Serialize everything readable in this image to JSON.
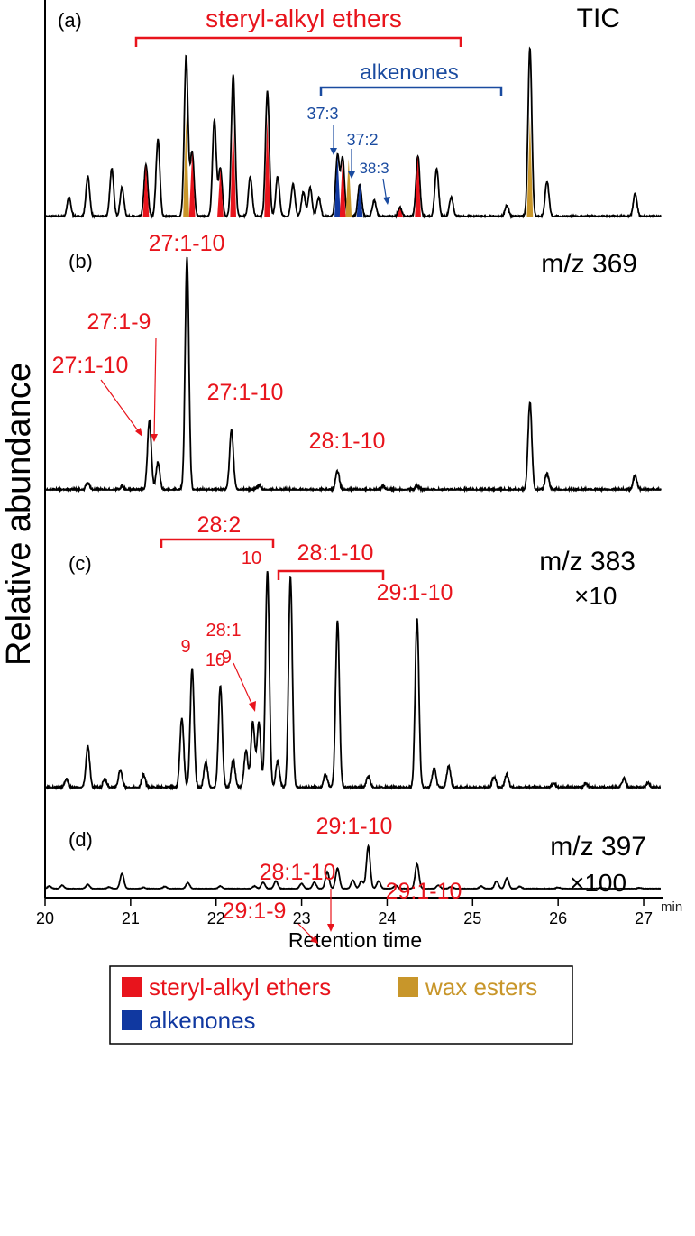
{
  "chart_data": {
    "type": "line",
    "title": "",
    "xlabel": "Retention time",
    "ylabel": "Relative abundance",
    "x_unit": "min",
    "xlim": [
      20,
      27.2
    ],
    "x_ticks": [
      "20",
      "21",
      "22",
      "23",
      "24",
      "25",
      "26",
      "27"
    ],
    "panels": [
      {
        "id": "a",
        "label": "(a)",
        "trace": "TIC",
        "multiplier": "",
        "peaks": [
          {
            "x": 20.28,
            "h": 0.12
          },
          {
            "x": 20.5,
            "h": 0.25
          },
          {
            "x": 20.78,
            "h": 0.3
          },
          {
            "x": 20.9,
            "h": 0.18
          },
          {
            "x": 21.18,
            "h": 0.32
          },
          {
            "x": 21.32,
            "h": 0.48
          },
          {
            "x": 21.65,
            "h": 1.0
          },
          {
            "x": 21.72,
            "h": 0.4
          },
          {
            "x": 21.98,
            "h": 0.6
          },
          {
            "x": 22.05,
            "h": 0.3
          },
          {
            "x": 22.2,
            "h": 0.88
          },
          {
            "x": 22.4,
            "h": 0.25
          },
          {
            "x": 22.6,
            "h": 0.78
          },
          {
            "x": 22.72,
            "h": 0.25
          },
          {
            "x": 22.9,
            "h": 0.2
          },
          {
            "x": 23.02,
            "h": 0.15
          },
          {
            "x": 23.1,
            "h": 0.18
          },
          {
            "x": 23.2,
            "h": 0.12
          },
          {
            "x": 23.42,
            "h": 0.38
          },
          {
            "x": 23.48,
            "h": 0.36
          },
          {
            "x": 23.68,
            "h": 0.2
          },
          {
            "x": 23.85,
            "h": 0.1
          },
          {
            "x": 24.15,
            "h": 0.05
          },
          {
            "x": 24.36,
            "h": 0.38
          },
          {
            "x": 24.58,
            "h": 0.3
          },
          {
            "x": 24.75,
            "h": 0.12
          },
          {
            "x": 25.4,
            "h": 0.07
          },
          {
            "x": 25.67,
            "h": 1.05
          },
          {
            "x": 25.87,
            "h": 0.22
          },
          {
            "x": 26.9,
            "h": 0.14
          }
        ],
        "markers": [
          {
            "x": 21.18,
            "type": "steryl-alkyl ethers"
          },
          {
            "x": 21.65,
            "type": "wax esters"
          },
          {
            "x": 21.72,
            "type": "steryl-alkyl ethers"
          },
          {
            "x": 22.05,
            "type": "steryl-alkyl ethers"
          },
          {
            "x": 22.2,
            "type": "steryl-alkyl ethers"
          },
          {
            "x": 22.6,
            "type": "steryl-alkyl ethers"
          },
          {
            "x": 23.42,
            "type": "alkenones"
          },
          {
            "x": 23.48,
            "type": "steryl-alkyl ethers"
          },
          {
            "x": 23.55,
            "type": "wax esters"
          },
          {
            "x": 23.68,
            "type": "alkenones"
          },
          {
            "x": 24.15,
            "type": "steryl-alkyl ethers"
          },
          {
            "x": 24.36,
            "type": "steryl-alkyl ethers"
          },
          {
            "x": 25.67,
            "type": "wax esters"
          }
        ]
      },
      {
        "id": "b",
        "label": "(b)",
        "trace": "m/z 369",
        "multiplier": "",
        "peaks": [
          {
            "x": 20.5,
            "h": 0.03
          },
          {
            "x": 20.9,
            "h": 0.015
          },
          {
            "x": 21.22,
            "h": 0.3
          },
          {
            "x": 21.32,
            "h": 0.12
          },
          {
            "x": 21.66,
            "h": 1.0
          },
          {
            "x": 22.18,
            "h": 0.26
          },
          {
            "x": 22.5,
            "h": 0.02
          },
          {
            "x": 23.42,
            "h": 0.08
          },
          {
            "x": 23.95,
            "h": 0.015
          },
          {
            "x": 24.35,
            "h": 0.02
          },
          {
            "x": 25.67,
            "h": 0.38
          },
          {
            "x": 25.87,
            "h": 0.07
          },
          {
            "x": 26.9,
            "h": 0.065
          }
        ],
        "annotations": [
          "27:1-10",
          "27:1-9",
          "27:1-10",
          "27:1-10",
          "28:1-10"
        ]
      },
      {
        "id": "c",
        "label": "(c)",
        "trace": "m/z 383",
        "multiplier": "×10",
        "peaks": [
          {
            "x": 20.25,
            "h": 0.04
          },
          {
            "x": 20.5,
            "h": 0.19
          },
          {
            "x": 20.7,
            "h": 0.04
          },
          {
            "x": 20.88,
            "h": 0.08
          },
          {
            "x": 21.15,
            "h": 0.06
          },
          {
            "x": 21.6,
            "h": 0.32
          },
          {
            "x": 21.72,
            "h": 0.55
          },
          {
            "x": 21.88,
            "h": 0.12
          },
          {
            "x": 22.05,
            "h": 0.47
          },
          {
            "x": 22.2,
            "h": 0.13
          },
          {
            "x": 22.35,
            "h": 0.17
          },
          {
            "x": 22.43,
            "h": 0.3
          },
          {
            "x": 22.5,
            "h": 0.3
          },
          {
            "x": 22.6,
            "h": 1.0
          },
          {
            "x": 22.72,
            "h": 0.12
          },
          {
            "x": 22.87,
            "h": 0.97
          },
          {
            "x": 23.28,
            "h": 0.06
          },
          {
            "x": 23.42,
            "h": 0.77
          },
          {
            "x": 23.78,
            "h": 0.05
          },
          {
            "x": 24.35,
            "h": 0.78
          },
          {
            "x": 24.55,
            "h": 0.09
          },
          {
            "x": 24.72,
            "h": 0.1
          },
          {
            "x": 25.25,
            "h": 0.05
          },
          {
            "x": 25.4,
            "h": 0.06
          },
          {
            "x": 25.95,
            "h": 0.02
          },
          {
            "x": 26.32,
            "h": 0.02
          },
          {
            "x": 26.77,
            "h": 0.04
          },
          {
            "x": 27.05,
            "h": 0.02
          }
        ],
        "annotations": [
          "28:2",
          "28:1-10",
          "29:1-10",
          "10",
          "9",
          "10",
          "28:1",
          "-9"
        ]
      },
      {
        "id": "d",
        "label": "(d)",
        "trace": "m/z 397",
        "multiplier": "×100",
        "peaks": [
          {
            "x": 20.05,
            "h": 0.06
          },
          {
            "x": 20.2,
            "h": 0.08
          },
          {
            "x": 20.5,
            "h": 0.1
          },
          {
            "x": 20.75,
            "h": 0.04
          },
          {
            "x": 20.9,
            "h": 0.36
          },
          {
            "x": 21.15,
            "h": 0.03
          },
          {
            "x": 21.4,
            "h": 0.05
          },
          {
            "x": 21.67,
            "h": 0.14
          },
          {
            "x": 22.05,
            "h": 0.06
          },
          {
            "x": 22.45,
            "h": 0.06
          },
          {
            "x": 22.55,
            "h": 0.15
          },
          {
            "x": 22.7,
            "h": 0.18
          },
          {
            "x": 23.0,
            "h": 0.12
          },
          {
            "x": 23.15,
            "h": 0.15
          },
          {
            "x": 23.3,
            "h": 0.4
          },
          {
            "x": 23.42,
            "h": 0.48
          },
          {
            "x": 23.6,
            "h": 0.2
          },
          {
            "x": 23.7,
            "h": 0.18
          },
          {
            "x": 23.78,
            "h": 1.0
          },
          {
            "x": 23.9,
            "h": 0.18
          },
          {
            "x": 24.1,
            "h": 0.08
          },
          {
            "x": 24.35,
            "h": 0.58
          },
          {
            "x": 24.6,
            "h": 0.08
          },
          {
            "x": 24.75,
            "h": 0.05
          },
          {
            "x": 25.1,
            "h": 0.06
          },
          {
            "x": 25.28,
            "h": 0.18
          },
          {
            "x": 25.4,
            "h": 0.25
          },
          {
            "x": 25.55,
            "h": 0.05
          },
          {
            "x": 26.0,
            "h": 0.03
          },
          {
            "x": 26.5,
            "h": 0.02
          },
          {
            "x": 26.95,
            "h": 0.02
          }
        ],
        "annotations": [
          "29:1-10",
          "28:1-10",
          "29:1-9",
          "29:1-10"
        ]
      }
    ],
    "brackets": {
      "steryl_alkyl_ethers": "steryl-alkyl ethers",
      "alkenones": "alkenones",
      "alkenone_labels": [
        "37:3",
        "37:2",
        "38:3"
      ]
    },
    "legend": {
      "placement": "bottom",
      "entries": [
        {
          "name": "steryl-alkyl ethers",
          "color": "#e8141c"
        },
        {
          "name": "wax esters",
          "color": "#c8962a"
        },
        {
          "name": "alkenones",
          "color": "#1038a0"
        }
      ]
    },
    "colors": {
      "trace": "#000000",
      "annotation_red": "#e8141c",
      "alkenone_blue": "#1a4ba0"
    }
  }
}
